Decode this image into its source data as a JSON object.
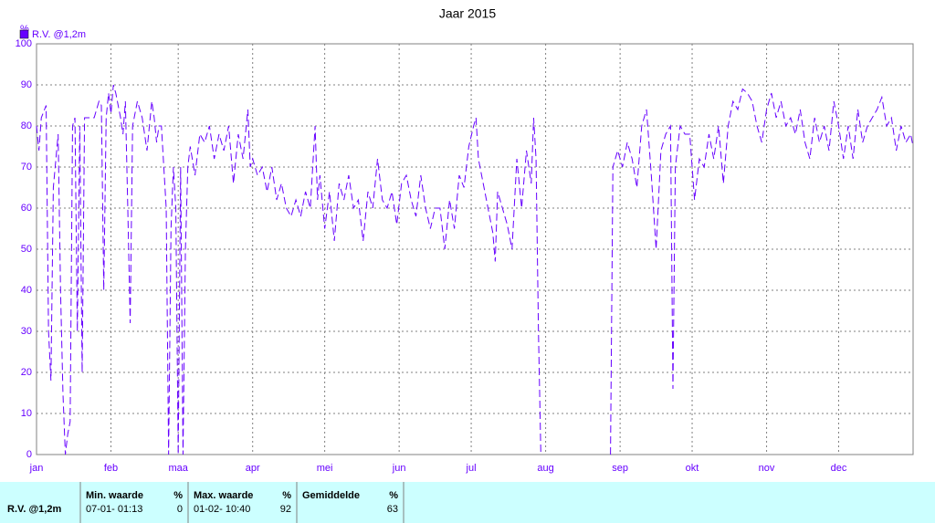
{
  "chart_data": {
    "type": "line",
    "title": "Jaar 2015",
    "y_label": "%",
    "xlim": [
      0,
      365
    ],
    "xticks": [
      {
        "value": 0,
        "label": "jan"
      },
      {
        "value": 31,
        "label": "feb"
      },
      {
        "value": 59,
        "label": "maa"
      },
      {
        "value": 90,
        "label": "apr"
      },
      {
        "value": 120,
        "label": "mei"
      },
      {
        "value": 151,
        "label": "jun"
      },
      {
        "value": 181,
        "label": "jul"
      },
      {
        "value": 212,
        "label": "aug"
      },
      {
        "value": 243,
        "label": "sep"
      },
      {
        "value": 273,
        "label": "okt"
      },
      {
        "value": 304,
        "label": "nov"
      },
      {
        "value": 334,
        "label": "dec"
      }
    ],
    "ylim": [
      0,
      100
    ],
    "yticks": [
      0,
      10,
      20,
      30,
      40,
      50,
      60,
      70,
      80,
      90,
      100
    ],
    "grid": true,
    "legend": "top-left",
    "x": [
      0,
      1,
      2,
      4,
      5,
      6,
      7,
      9,
      10,
      11,
      12,
      13,
      14,
      15,
      16,
      17,
      18,
      19,
      20,
      22,
      24,
      26,
      27,
      28,
      29,
      30,
      31,
      32,
      33,
      35,
      36,
      37,
      38,
      39,
      40,
      42,
      44,
      46,
      48,
      49,
      50,
      51,
      52,
      54,
      55,
      56,
      57,
      58,
      59,
      60,
      61,
      62,
      63,
      64,
      66,
      68,
      70,
      72,
      74,
      76,
      78,
      80,
      82,
      84,
      86,
      88,
      89,
      90,
      92,
      94,
      96,
      98,
      100,
      102,
      104,
      106,
      108,
      110,
      112,
      114,
      116,
      117,
      118,
      120,
      122,
      124,
      126,
      128,
      130,
      132,
      134,
      136,
      138,
      140,
      142,
      144,
      146,
      148,
      150,
      152,
      154,
      156,
      158,
      160,
      162,
      164,
      166,
      168,
      170,
      172,
      174,
      176,
      178,
      180,
      182,
      183,
      184,
      186,
      188,
      190,
      191,
      192,
      194,
      196,
      198,
      200,
      202,
      204,
      206,
      207,
      208,
      209,
      210,
      225,
      239,
      240,
      242,
      244,
      246,
      248,
      250,
      252,
      254,
      256,
      258,
      260,
      262,
      264,
      265,
      266,
      268,
      270,
      272,
      274,
      276,
      278,
      280,
      282,
      284,
      286,
      288,
      290,
      292,
      294,
      296,
      298,
      300,
      302,
      304,
      306,
      308,
      310,
      312,
      314,
      316,
      318,
      320,
      322,
      324,
      326,
      328,
      330,
      332,
      334,
      336,
      338,
      340,
      342,
      344,
      346,
      348,
      350,
      352,
      354,
      356,
      358,
      360,
      362,
      364,
      365
    ],
    "series": [
      {
        "name": "R.V. @1,2m",
        "color": "#6600ff",
        "values": [
          80,
          74,
          82,
          85,
          30,
          18,
          65,
          78,
          40,
          15,
          0,
          5,
          8,
          80,
          82,
          30,
          80,
          20,
          82,
          82,
          82,
          86,
          85,
          40,
          82,
          88,
          83,
          90,
          88,
          82,
          78,
          86,
          60,
          32,
          80,
          86,
          82,
          74,
          86,
          82,
          76,
          80,
          80,
          60,
          0,
          55,
          70,
          60,
          0,
          70,
          0,
          50,
          70,
          75,
          68,
          78,
          76,
          80,
          72,
          78,
          74,
          80,
          66,
          78,
          72,
          84,
          70,
          72,
          68,
          70,
          64,
          70,
          62,
          66,
          60,
          58,
          62,
          58,
          64,
          60,
          80,
          62,
          68,
          55,
          64,
          52,
          66,
          62,
          68,
          60,
          62,
          52,
          64,
          60,
          72,
          62,
          60,
          64,
          56,
          66,
          68,
          62,
          58,
          68,
          60,
          55,
          60,
          60,
          50,
          62,
          55,
          68,
          65,
          75,
          80,
          82,
          72,
          66,
          60,
          54,
          47,
          64,
          60,
          56,
          50,
          72,
          60,
          74,
          66,
          82,
          72,
          30,
          0,
          null,
          0,
          70,
          74,
          70,
          76,
          72,
          65,
          80,
          84,
          68,
          50,
          74,
          78,
          80,
          16,
          70,
          80,
          78,
          78,
          62,
          72,
          70,
          78,
          72,
          80,
          66,
          80,
          86,
          84,
          89,
          88,
          86,
          80,
          76,
          84,
          88,
          82,
          86,
          80,
          82,
          78,
          84,
          76,
          72,
          82,
          76,
          80,
          74,
          86,
          80,
          72,
          80,
          72,
          84,
          76,
          80,
          82,
          84,
          87,
          80,
          82,
          74,
          80,
          76,
          78,
          75
        ]
      }
    ]
  },
  "table": {
    "row_label": "R.V. @1,2m",
    "columns": [
      {
        "header": "Min. waarde",
        "unit": "%",
        "when": "07-01- 01:13",
        "value": "0"
      },
      {
        "header": "Max. waarde",
        "unit": "%",
        "when": "01-02- 10:40",
        "value": "92"
      },
      {
        "header": "Gemiddelde",
        "unit": "%",
        "when": "",
        "value": "63"
      }
    ]
  }
}
